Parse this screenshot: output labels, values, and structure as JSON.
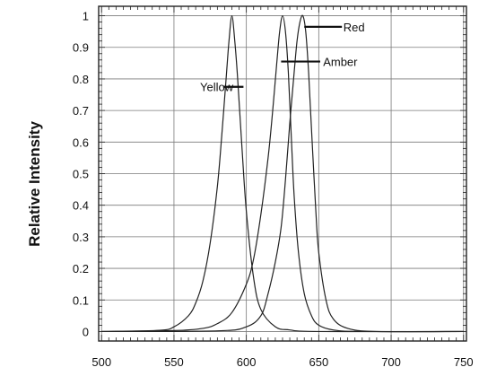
{
  "chart_data": {
    "type": "line",
    "title": "",
    "xlabel": "",
    "ylabel": "Relative Intensity",
    "xlim": [
      498,
      752
    ],
    "ylim": [
      -0.03,
      1.03
    ],
    "grid": true,
    "x_ticks": [
      500,
      550,
      600,
      650,
      700,
      750
    ],
    "y_ticks": [
      0,
      0.1,
      0.2,
      0.3,
      0.4,
      0.5,
      0.6,
      0.7,
      0.8,
      0.9,
      1
    ],
    "x_tick_labels": [
      "500",
      "550",
      "600",
      "650",
      "700",
      "750"
    ],
    "y_tick_labels": [
      "0",
      "0.1",
      "0.2",
      "0.3",
      "0.4",
      "0.5",
      "0.6",
      "0.7",
      "0.8",
      "0.9",
      "1"
    ],
    "series": [
      {
        "x": [
          500,
          540,
          550,
          560,
          565,
          570,
          575,
          580,
          583,
          586,
          588,
          590,
          592,
          594,
          597,
          600,
          605,
          610,
          620,
          630,
          650,
          750
        ],
        "y": [
          0,
          0.004,
          0.015,
          0.05,
          0.09,
          0.16,
          0.28,
          0.46,
          0.62,
          0.8,
          0.92,
          1.0,
          0.92,
          0.8,
          0.58,
          0.38,
          0.17,
          0.07,
          0.015,
          0.005,
          0,
          0
        ]
      },
      {
        "x": [
          500,
          550,
          570,
          580,
          590,
          600,
          605,
          610,
          615,
          618,
          621,
          623,
          625,
          627,
          629,
          631,
          633,
          636,
          640,
          645,
          650,
          660,
          680,
          750
        ],
        "y": [
          0,
          0.003,
          0.01,
          0.025,
          0.06,
          0.15,
          0.23,
          0.37,
          0.55,
          0.69,
          0.85,
          0.95,
          1.0,
          0.95,
          0.82,
          0.62,
          0.43,
          0.25,
          0.12,
          0.05,
          0.02,
          0.005,
          0,
          0
        ]
      },
      {
        "x": [
          500,
          580,
          600,
          610,
          615,
          620,
          624,
          627,
          630,
          633,
          635,
          637,
          639,
          641,
          643,
          645,
          648,
          650,
          655,
          660,
          670,
          690,
          750
        ],
        "y": [
          0,
          0.002,
          0.015,
          0.05,
          0.12,
          0.22,
          0.33,
          0.48,
          0.66,
          0.82,
          0.92,
          0.98,
          1.0,
          0.95,
          0.82,
          0.64,
          0.38,
          0.25,
          0.1,
          0.04,
          0.01,
          0,
          0
        ]
      }
    ],
    "annotations": [
      {
        "text": "Yellow",
        "x": 568,
        "y": 0.775,
        "line_from": [
          584,
          0.775
        ],
        "line_to": [
          598,
          0.775
        ]
      },
      {
        "text": "Amber",
        "x": 653,
        "y": 0.855,
        "line_from": [
          624,
          0.855
        ],
        "line_to": [
          651,
          0.855
        ]
      },
      {
        "text": "Red",
        "x": 667,
        "y": 0.965,
        "line_from": [
          640,
          0.965
        ],
        "line_to": [
          666,
          0.965
        ]
      }
    ]
  }
}
